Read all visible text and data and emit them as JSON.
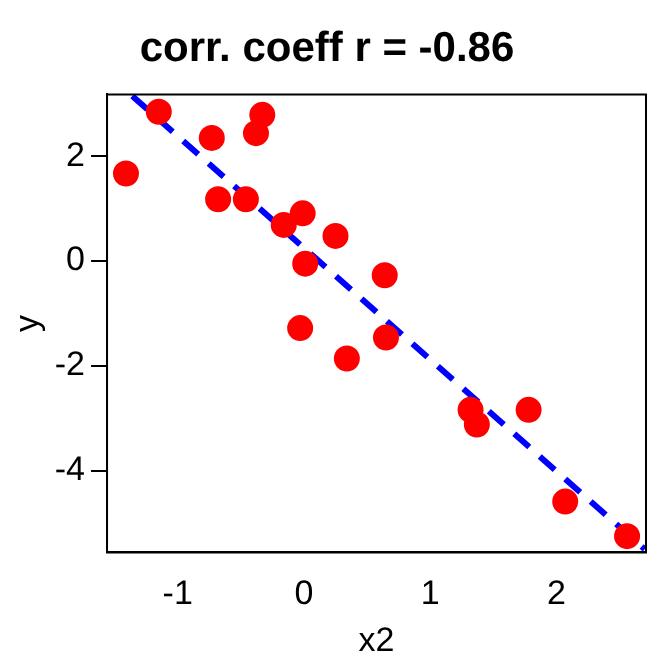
{
  "chart_data": {
    "type": "scatter",
    "title": "corr. coeff r = -0.86",
    "xlabel": "x2",
    "ylabel": "y",
    "xlim": [
      -1.56,
      2.71
    ],
    "ylim": [
      -5.56,
      3.18
    ],
    "xticks": [
      -1,
      0,
      1,
      2
    ],
    "yticks": [
      -4,
      -2,
      0,
      2
    ],
    "grid": false,
    "legend": false,
    "series": [
      {
        "marker": "circle",
        "color": "#ff0000",
        "x": [
          -1.41,
          -1.15,
          -0.73,
          -0.33,
          -0.38,
          -0.68,
          -0.46,
          -0.16,
          -0.01,
          0.25,
          0.01,
          0.64,
          -0.03,
          0.34,
          0.65,
          1.32,
          1.37,
          1.78,
          2.07,
          2.56
        ],
        "values": [
          1.67,
          2.85,
          2.35,
          2.79,
          2.44,
          1.18,
          1.18,
          0.69,
          0.91,
          0.48,
          -0.05,
          -0.27,
          -1.28,
          -1.86,
          -1.46,
          -2.84,
          -3.12,
          -2.84,
          -4.59,
          -5.25
        ]
      },
      {
        "type": "line",
        "marker": "none",
        "line_style": "dashed",
        "color": "#0000ff",
        "x": [
          -1.36,
          2.7
        ],
        "values": [
          3.15,
          -5.5
        ]
      }
    ]
  }
}
